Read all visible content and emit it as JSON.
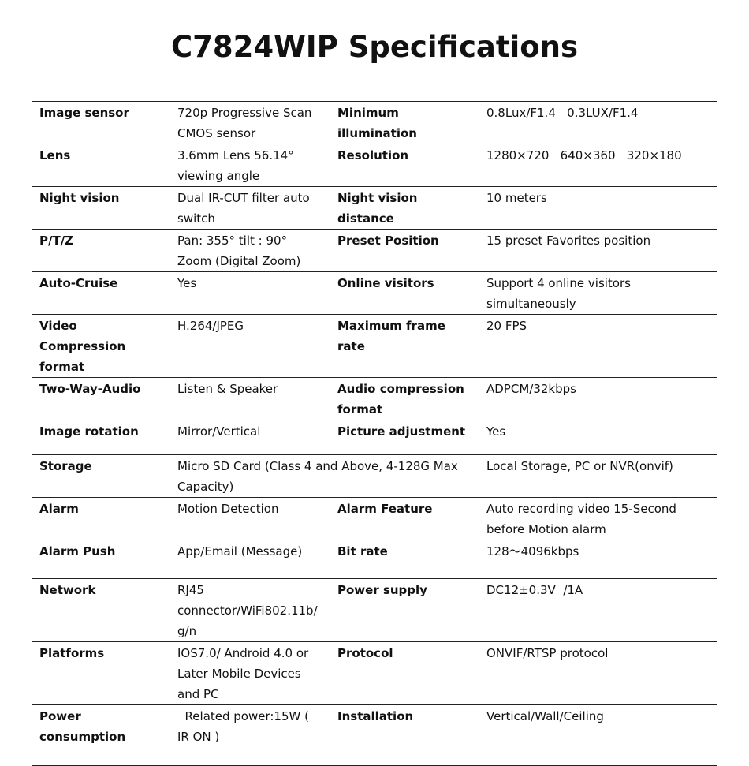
{
  "header": {
    "title": "C7824WIP Specifications"
  },
  "table": {
    "rows": [
      [
        "Image sensor",
        "720p Progressive Scan CMOS sensor",
        "Minimum illumination",
        "0.8Lux/F1.4   0.3LUX/F1.4"
      ],
      [
        "Lens",
        "3.6mm Lens 56.14° viewing angle",
        "Resolution",
        "1280×720   640×360   320×180"
      ],
      [
        "Night vision",
        "Dual IR-CUT filter auto switch",
        "Night vision distance",
        "10 meters"
      ],
      [
        "P/T/Z",
        "Pan: 355° tilt : 90° Zoom (Digital Zoom)",
        "Preset Position",
        "15 preset Favorites position"
      ],
      [
        "Auto-Cruise",
        "Yes",
        "Online visitors",
        "Support 4 online visitors simultaneously"
      ],
      [
        "Video Compression format",
        "H.264/JPEG",
        "Maximum frame rate",
        "20 FPS"
      ],
      [
        "Two-Way-Audio",
        "Listen & Speaker",
        "Audio compression format",
        "ADPCM/32kbps"
      ],
      [
        "Image rotation",
        "Mirror/Vertical",
        "Picture adjustment",
        "Yes"
      ],
      [
        "Storage",
        "Micro SD Card (Class 4 and Above, 4-128G Max Capacity)",
        "Local Storage, PC or NVR(onvif)"
      ],
      [
        "Alarm",
        "Motion Detection",
        "Alarm Feature",
        "Auto recording video 15-Second before Motion alarm"
      ],
      [
        "Alarm Push",
        "App/Email (Message)",
        "Bit rate",
        "128～4096kbps"
      ],
      [
        "Network",
        "RJ45 connector/WiFi802.11b/g/n",
        "Power supply",
        "DC12±0.3V  /1A"
      ],
      [
        "Platforms",
        "IOS7.0/ Android 4.0 or Later Mobile Devices and PC",
        "Protocol",
        "ONVIF/RTSP protocol"
      ],
      [
        "Power consumption",
        "  Related power:15W ( IR ON )",
        "Installation",
        "Vertical/Wall/Ceiling"
      ]
    ]
  }
}
